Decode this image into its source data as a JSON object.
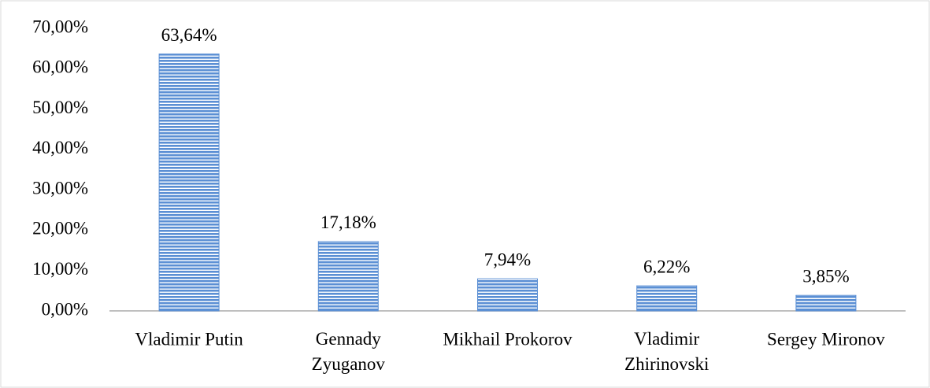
{
  "chart_data": {
    "type": "bar",
    "categories": [
      "Vladimir Putin",
      "Gennady Zyuganov",
      "Mikhail Prokorov",
      "Vladimir Zhirinovski",
      "Sergey Mironov"
    ],
    "values": [
      63.64,
      17.18,
      7.94,
      6.22,
      3.85
    ],
    "value_labels": [
      "63,64%",
      "17,18%",
      "7,94%",
      "6,22%",
      "3,85%"
    ],
    "color": "#5b8fd4",
    "ylim": [
      0,
      70
    ],
    "yticks": [
      {
        "value": 0,
        "label": "0,00%"
      },
      {
        "value": 10,
        "label": "10,00%"
      },
      {
        "value": 20,
        "label": "20,00%"
      },
      {
        "value": 30,
        "label": "30,00%"
      },
      {
        "value": 40,
        "label": "40,00%"
      },
      {
        "value": 50,
        "label": "50,00%"
      },
      {
        "value": 60,
        "label": "60,00%"
      },
      {
        "value": 70,
        "label": "70,00%"
      }
    ],
    "grid": false
  }
}
